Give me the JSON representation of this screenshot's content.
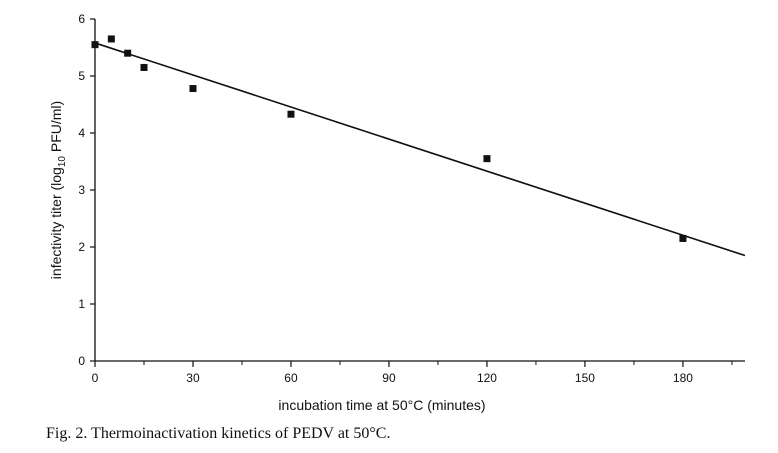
{
  "chart_data": {
    "type": "scatter",
    "xlabel": "incubation time at 50°C (minutes)",
    "ylabel_parts": [
      "infectivity titer (log",
      "10",
      " PFU/ml)"
    ],
    "xlim": [
      0,
      199
    ],
    "ylim": [
      0,
      6
    ],
    "xticks": [
      0,
      30,
      60,
      90,
      120,
      150,
      180
    ],
    "yticks": [
      0,
      1,
      2,
      3,
      4,
      5,
      6
    ],
    "grid": false,
    "series": [
      {
        "points": [
          {
            "x": 0,
            "y": 5.55
          },
          {
            "x": 5,
            "y": 5.65
          },
          {
            "x": 10,
            "y": 5.4
          },
          {
            "x": 15,
            "y": 5.15
          },
          {
            "x": 30,
            "y": 4.78
          },
          {
            "x": 60,
            "y": 4.33
          },
          {
            "x": 120,
            "y": 3.55
          },
          {
            "x": 180,
            "y": 2.15
          }
        ],
        "marker": "square",
        "color": "#111111"
      }
    ],
    "fit_line": {
      "x": [
        0,
        199
      ],
      "y": [
        5.58,
        1.85
      ],
      "color": "#111111"
    }
  },
  "caption": "Fig. 2. Thermoinactivation kinetics of PEDV at 50°C."
}
